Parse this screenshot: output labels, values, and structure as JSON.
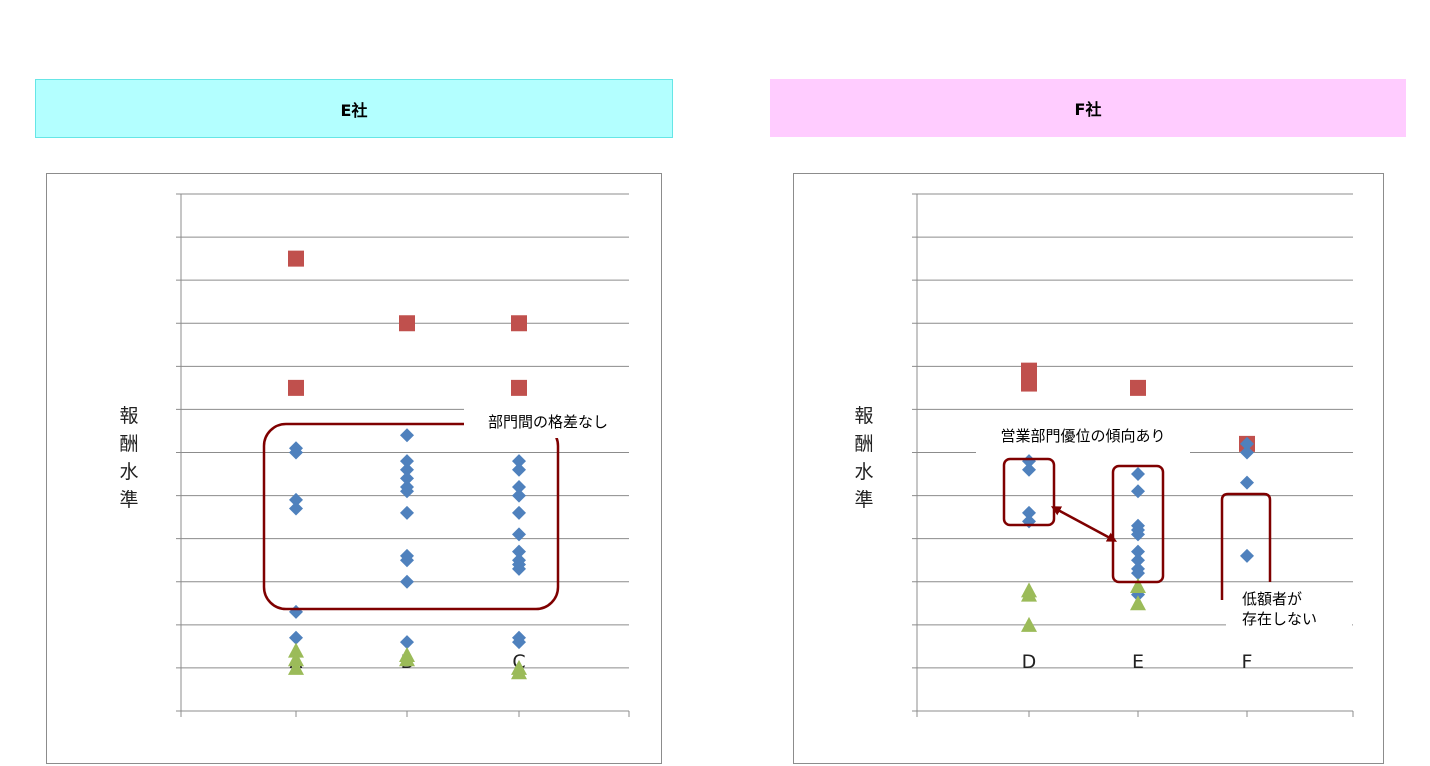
{
  "charts": [
    {
      "banner": "E社",
      "banner_color": "#b3ffff",
      "banner_border": "#66e6e6",
      "ylabel_chars": [
        "報",
        "酬",
        "水",
        "準"
      ],
      "annotations": [
        {
          "text": "部門間の格差なし"
        }
      ]
    },
    {
      "banner": "F社",
      "banner_color": "#ffccff",
      "banner_border": "#ffccff",
      "ylabel_chars": [
        "報",
        "酬",
        "水",
        "準"
      ],
      "annotations": [
        {
          "text": "営業部門優位の傾向あり"
        },
        {
          "text": "低額者が"
        },
        {
          "text": "存在しない"
        }
      ]
    }
  ],
  "chart_data": [
    {
      "type": "scatter",
      "title": "E社",
      "ylabel": "報酬水準",
      "categories": [
        "A",
        "B",
        "C"
      ],
      "ylim": [
        0,
        12
      ],
      "grid": true,
      "series": [
        {
          "marker": "square",
          "color": "#c0504d",
          "points": [
            [
              "A",
              10.5
            ],
            [
              "A",
              7.5
            ],
            [
              "B",
              9.0
            ],
            [
              "C",
              9.0
            ],
            [
              "C",
              7.5
            ]
          ]
        },
        {
          "marker": "diamond",
          "color": "#4f81bd",
          "points": [
            [
              "A",
              6.1
            ],
            [
              "A",
              6.0
            ],
            [
              "A",
              4.9
            ],
            [
              "A",
              4.7
            ],
            [
              "A",
              2.3
            ],
            [
              "A",
              1.7
            ],
            [
              "B",
              6.4
            ],
            [
              "B",
              5.8
            ],
            [
              "B",
              5.6
            ],
            [
              "B",
              5.4
            ],
            [
              "B",
              5.2
            ],
            [
              "B",
              5.1
            ],
            [
              "B",
              4.6
            ],
            [
              "B",
              3.6
            ],
            [
              "B",
              3.5
            ],
            [
              "B",
              3.0
            ],
            [
              "B",
              1.6
            ],
            [
              "C",
              5.8
            ],
            [
              "C",
              5.6
            ],
            [
              "C",
              5.2
            ],
            [
              "C",
              5.0
            ],
            [
              "C",
              4.6
            ],
            [
              "C",
              4.1
            ],
            [
              "C",
              3.7
            ],
            [
              "C",
              3.5
            ],
            [
              "C",
              3.4
            ],
            [
              "C",
              3.3
            ],
            [
              "C",
              1.7
            ],
            [
              "C",
              1.6
            ]
          ]
        },
        {
          "marker": "triangle",
          "color": "#9bbb59",
          "points": [
            [
              "A",
              1.4
            ],
            [
              "A",
              1.2
            ],
            [
              "A",
              1.0
            ],
            [
              "B",
              1.3
            ],
            [
              "B",
              1.2
            ],
            [
              "C",
              1.0
            ],
            [
              "C",
              0.9
            ]
          ]
        }
      ]
    },
    {
      "type": "scatter",
      "title": "F社",
      "ylabel": "報酬水準",
      "categories": [
        "D",
        "E",
        "F"
      ],
      "ylim": [
        0,
        12
      ],
      "grid": true,
      "series": [
        {
          "marker": "square",
          "color": "#c0504d",
          "points": [
            [
              "D",
              7.9
            ],
            [
              "D",
              7.6
            ],
            [
              "E",
              7.5
            ],
            [
              "F",
              6.2
            ]
          ]
        },
        {
          "marker": "diamond",
          "color": "#4f81bd",
          "points": [
            [
              "D",
              5.8
            ],
            [
              "D",
              5.6
            ],
            [
              "D",
              4.6
            ],
            [
              "D",
              4.4
            ],
            [
              "E",
              5.5
            ],
            [
              "E",
              5.1
            ],
            [
              "E",
              4.3
            ],
            [
              "E",
              4.2
            ],
            [
              "E",
              4.1
            ],
            [
              "E",
              3.7
            ],
            [
              "E",
              3.5
            ],
            [
              "E",
              3.3
            ],
            [
              "E",
              3.2
            ],
            [
              "E",
              2.7
            ],
            [
              "F",
              6.2
            ],
            [
              "F",
              6.0
            ],
            [
              "F",
              5.3
            ],
            [
              "F",
              3.6
            ]
          ]
        },
        {
          "marker": "triangle",
          "color": "#9bbb59",
          "points": [
            [
              "D",
              2.8
            ],
            [
              "D",
              2.7
            ],
            [
              "D",
              2.0
            ],
            [
              "E",
              2.9
            ],
            [
              "E",
              2.5
            ]
          ]
        }
      ]
    }
  ]
}
